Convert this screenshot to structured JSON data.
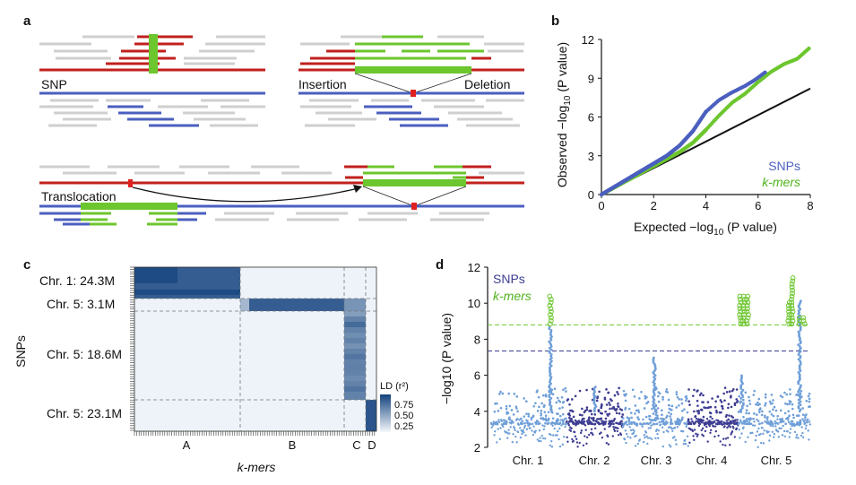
{
  "panels": {
    "a": {
      "letter": "a",
      "labels": {
        "snp": "SNP",
        "insertion": "Insertion",
        "deletion": "Deletion",
        "translocation": "Translocation"
      }
    },
    "b": {
      "letter": "b",
      "x_title_prefix": "Expected −log",
      "x_title_sub": "10",
      "x_title_suffix": " (P value)",
      "y_title_prefix": "Observed −log",
      "y_title_sub": "10",
      "y_title_suffix": " (P value)",
      "legend": [
        "SNPs",
        "k-mers"
      ]
    },
    "c": {
      "letter": "c",
      "row_labels": [
        "Chr. 1: 24.3M",
        "Chr. 5: 3.1M",
        "Chr. 5: 18.6M",
        "Chr. 5: 23.1M"
      ],
      "col_labels": [
        "A",
        "B",
        "C",
        "D"
      ],
      "xlabel": "k-mers",
      "ylabel": "SNPs",
      "legend_title": "LD (r²)",
      "legend_ticks": [
        "0.75",
        "0.50",
        "0.25"
      ]
    },
    "d": {
      "letter": "d",
      "y_title": "−log10 (P value)",
      "legend": [
        "SNPs",
        "k-mers"
      ],
      "chromosomes": [
        "Chr. 1",
        "Chr. 2",
        "Chr. 3",
        "Chr. 4",
        "Chr. 5"
      ]
    }
  },
  "colors": {
    "snp_blue": "#4b5fbf",
    "kmer_green": "#6cc62e",
    "ref_red": "#c0201e",
    "read_gray": "#cfcfcf",
    "manhattan_light": "#6f9fd8",
    "manhattan_dark": "#3d3c92"
  },
  "chart_data": [
    {
      "type": "scatter",
      "panel": "b",
      "xlabel": "Expected −log10 (P value)",
      "ylabel": "Observed −log10 (P value)",
      "xlim": [
        0,
        8
      ],
      "ylim": [
        0,
        12
      ],
      "xticks": [
        0,
        2,
        4,
        6,
        8
      ],
      "yticks": [
        0,
        3,
        6,
        9,
        12
      ],
      "reference_line": {
        "x": [
          0,
          8
        ],
        "y": [
          0,
          8.2
        ]
      },
      "series": [
        {
          "name": "SNPs",
          "x": [
            0,
            1,
            2,
            2.5,
            3,
            3.5,
            4,
            4.5,
            5,
            5.5,
            5.9,
            6.3
          ],
          "y": [
            0,
            1.2,
            2.4,
            3.0,
            3.8,
            4.9,
            6.4,
            7.3,
            7.9,
            8.4,
            8.9,
            9.5
          ]
        },
        {
          "name": "k-mers",
          "x": [
            0,
            1,
            2,
            3,
            3.5,
            4,
            4.5,
            5,
            5.5,
            6,
            6.5,
            7,
            7.5,
            8
          ],
          "y": [
            0,
            1.1,
            2.2,
            3.3,
            4.0,
            5.0,
            6.1,
            7.1,
            7.8,
            8.7,
            9.5,
            10.1,
            10.5,
            11.4
          ]
        }
      ]
    },
    {
      "type": "heatmap",
      "panel": "c",
      "rows": [
        "Chr. 1: 24.3M",
        "Chr. 5: 3.1M",
        "Chr. 5: 18.6M",
        "Chr. 5: 23.1M"
      ],
      "cols": [
        "A",
        "B",
        "C",
        "D"
      ],
      "values": [
        [
          0.85,
          0.0,
          0.0,
          0.0
        ],
        [
          0.0,
          0.85,
          0.55,
          0.0
        ],
        [
          0.0,
          0.0,
          0.65,
          0.0
        ],
        [
          0.0,
          0.0,
          0.05,
          0.9
        ]
      ],
      "legend_ticks": [
        0.75,
        0.5,
        0.25
      ]
    },
    {
      "type": "scatter",
      "panel": "d",
      "ylabel": "−log10 (P value)",
      "ylim": [
        2,
        12
      ],
      "yticks": [
        2,
        4,
        6,
        8,
        10,
        12
      ],
      "categories": [
        "Chr. 1",
        "Chr. 2",
        "Chr. 3",
        "Chr. 4",
        "Chr. 5"
      ],
      "thresholds": {
        "SNPs": 7.35,
        "k-mers": 8.8
      },
      "series": [
        {
          "name": "SNPs",
          "peaks": [
            {
              "chr": "Chr. 1",
              "max": 8.7
            },
            {
              "chr": "Chr. 2",
              "max": 5.4
            },
            {
              "chr": "Chr. 3",
              "max": 7.0
            },
            {
              "chr": "Chr. 4",
              "max": 6.0
            },
            {
              "chr": "Chr. 5",
              "max": 10.2
            }
          ]
        },
        {
          "name": "k-mers",
          "peaks": [
            {
              "chr": "Chr. 1",
              "max": 10.4
            },
            {
              "chr": "Chr. 4",
              "max": 10.4
            },
            {
              "chr": "Chr. 5",
              "max": 11.5
            }
          ]
        }
      ]
    }
  ]
}
